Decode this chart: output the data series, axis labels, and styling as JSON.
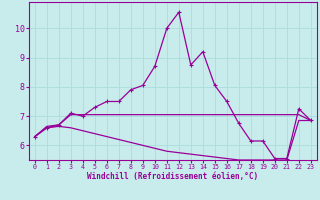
{
  "xlabel": "Windchill (Refroidissement éolien,°C)",
  "background_color": "#c8ecec",
  "grid_color": "#aadddd",
  "line_color": "#990099",
  "spine_color": "#990099",
  "xlim": [
    -0.5,
    23.5
  ],
  "ylim": [
    5.5,
    10.9
  ],
  "yticks": [
    6,
    7,
    8,
    9,
    10
  ],
  "xticks": [
    0,
    1,
    2,
    3,
    4,
    5,
    6,
    7,
    8,
    9,
    10,
    11,
    12,
    13,
    14,
    15,
    16,
    17,
    18,
    19,
    20,
    21,
    22,
    23
  ],
  "series1_x": [
    0,
    1,
    2,
    3,
    4,
    5,
    6,
    7,
    8,
    9,
    10,
    11,
    12,
    13,
    14,
    15,
    16,
    17,
    18,
    19,
    20,
    21,
    22,
    23
  ],
  "series1_y": [
    6.3,
    6.6,
    6.7,
    7.1,
    7.0,
    7.3,
    7.5,
    7.5,
    7.9,
    8.05,
    8.7,
    10.0,
    10.55,
    8.75,
    9.2,
    8.05,
    7.5,
    6.75,
    6.15,
    6.15,
    5.55,
    5.55,
    7.25,
    6.85
  ],
  "series2_x": [
    0,
    1,
    2,
    3,
    4,
    5,
    6,
    7,
    8,
    9,
    10,
    11,
    12,
    13,
    14,
    15,
    16,
    17,
    18,
    19,
    20,
    21,
    22,
    23
  ],
  "series2_y": [
    6.3,
    6.65,
    6.7,
    7.05,
    7.05,
    7.05,
    7.05,
    7.05,
    7.05,
    7.05,
    7.05,
    7.05,
    7.05,
    7.05,
    7.05,
    7.05,
    7.05,
    7.05,
    7.05,
    7.05,
    7.05,
    7.05,
    7.05,
    6.85
  ],
  "series3_x": [
    0,
    1,
    2,
    3,
    4,
    5,
    6,
    7,
    8,
    9,
    10,
    11,
    12,
    13,
    14,
    15,
    16,
    17,
    18,
    19,
    20,
    21,
    22,
    23
  ],
  "series3_y": [
    6.3,
    6.6,
    6.65,
    6.6,
    6.5,
    6.4,
    6.3,
    6.2,
    6.1,
    6.0,
    5.9,
    5.8,
    5.75,
    5.7,
    5.65,
    5.6,
    5.55,
    5.5,
    5.5,
    5.5,
    5.5,
    5.5,
    6.85,
    6.85
  ],
  "xlabel_fontsize": 5.5,
  "xtick_fontsize": 4.8,
  "ytick_fontsize": 6.0,
  "linewidth": 0.9,
  "marker": "+",
  "markersize": 3.0,
  "markeredgewidth": 0.8
}
